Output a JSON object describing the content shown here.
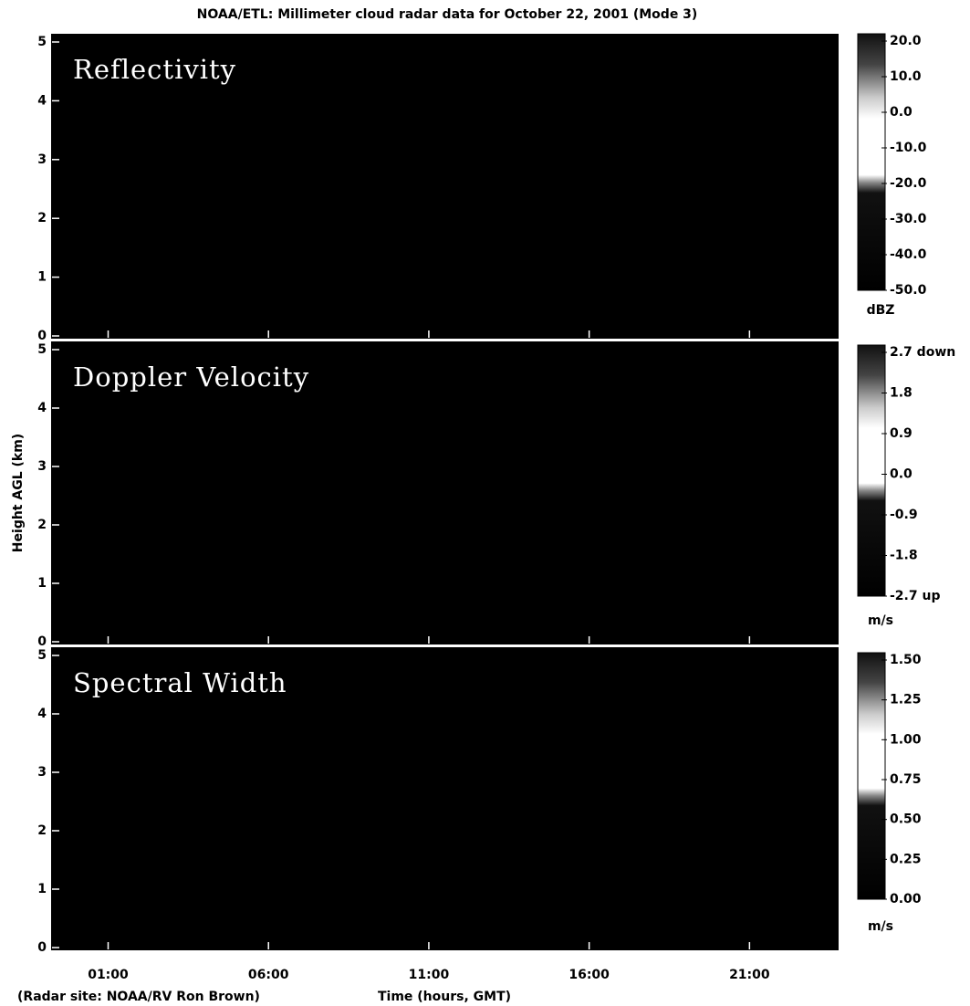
{
  "title": "NOAA/ETL: Millimeter cloud radar data for October 22, 2001 (Mode 3)",
  "xlabel": "Time (hours, GMT)",
  "ylabel": "Height AGL (km)",
  "note": "(Radar site: NOAA/RV Ron Brown)",
  "chart_data": [
    {
      "type": "heatmap",
      "title": "Reflectivity",
      "xlim": [
        -0.75,
        23.75
      ],
      "ylim": [
        0,
        5
      ],
      "yticks": [
        0,
        1,
        2,
        3,
        4,
        5
      ],
      "colorbar": {
        "lim": [
          -50,
          20
        ],
        "unit": "dBZ",
        "ticks": [
          {
            "value": 20,
            "label": "20.0"
          },
          {
            "value": 10,
            "label": "10.0"
          },
          {
            "value": 0,
            "label": "0.0"
          },
          {
            "value": -10,
            "label": "-10.0"
          },
          {
            "value": -20,
            "label": "-20.0"
          },
          {
            "value": -30,
            "label": "-30.0"
          },
          {
            "value": -40,
            "label": "-40.0"
          },
          {
            "value": -50,
            "label": "-50.0"
          }
        ]
      }
    },
    {
      "type": "heatmap",
      "title": "Doppler Velocity",
      "xlim": [
        -0.75,
        23.75
      ],
      "ylim": [
        0,
        5
      ],
      "yticks": [
        0,
        1,
        2,
        3,
        4,
        5
      ],
      "colorbar": {
        "lim": [
          -2.7,
          2.7
        ],
        "unit": "m/s",
        "ticks": [
          {
            "value": 2.7,
            "label": "2.7 down"
          },
          1.8,
          0.9,
          {
            "value": 0,
            "label": "0.0"
          },
          -0.9,
          -1.8,
          {
            "value": -2.7,
            "label": "-2.7 up"
          }
        ]
      }
    },
    {
      "type": "heatmap",
      "title": "Spectral Width",
      "xlim": [
        -0.75,
        23.75
      ],
      "ylim": [
        0,
        5
      ],
      "yticks": [
        0,
        1,
        2,
        3,
        4,
        5
      ],
      "xticks": [
        {
          "value": 1,
          "label": "01:00"
        },
        {
          "value": 6,
          "label": "06:00"
        },
        {
          "value": 11,
          "label": "11:00"
        },
        {
          "value": 16,
          "label": "16:00"
        },
        {
          "value": 21,
          "label": "21:00"
        }
      ],
      "colorbar": {
        "lim": [
          0,
          1.5
        ],
        "unit": "m/s",
        "ticks": [
          {
            "value": 1.5,
            "label": "1.50"
          },
          1.25,
          {
            "value": 1,
            "label": "1.00"
          },
          0.75,
          {
            "value": 0.5,
            "label": "0.50"
          },
          0.25,
          {
            "value": 0,
            "label": "0.00"
          }
        ]
      }
    }
  ]
}
